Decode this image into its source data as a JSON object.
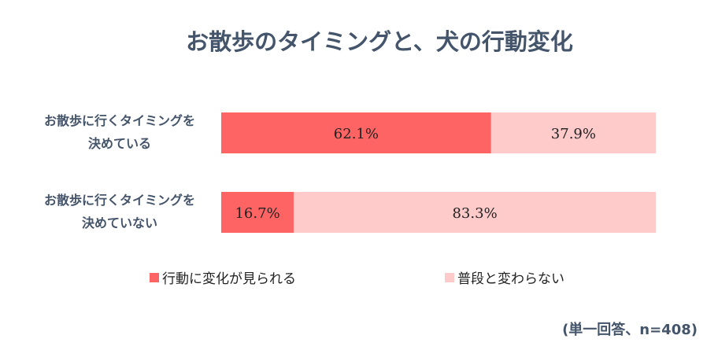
{
  "chart_data": {
    "type": "bar",
    "stacked": true,
    "orientation": "horizontal",
    "percent": true,
    "title": "お散歩のタイミングと、犬の行動変化",
    "categories": [
      [
        "お散歩に行くタイミングを",
        "決めている"
      ],
      [
        "お散歩に行くタイミングを",
        "決めていない"
      ]
    ],
    "series": [
      {
        "name": "行動に変化が見られる",
        "values": [
          62.1,
          16.7
        ],
        "labels": [
          "62.1%",
          "16.7%"
        ],
        "color": "#ff6464"
      },
      {
        "name": "普段と変わらない",
        "values": [
          37.9,
          83.3
        ],
        "labels": [
          "37.9%",
          "83.3%"
        ],
        "color": "#ffcaca"
      }
    ],
    "xlim": [
      0,
      100
    ],
    "grid": false,
    "legend": "bottom",
    "note": "(単一回答、n=408)",
    "colors": {
      "title": "#44546a",
      "label": "#44546a",
      "value_text": "#222222"
    }
  }
}
